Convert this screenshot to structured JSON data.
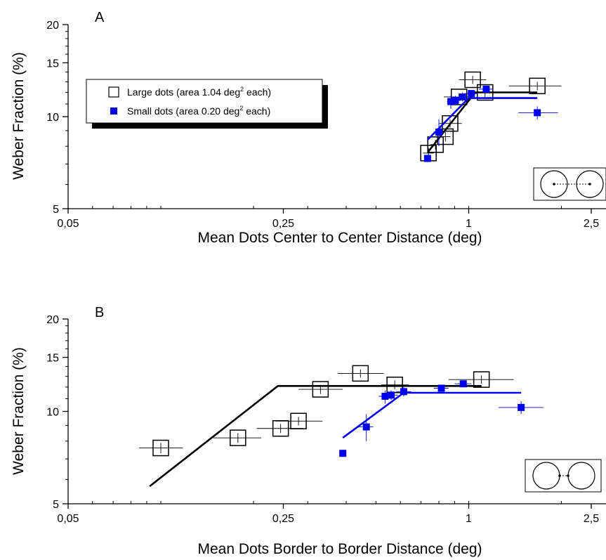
{
  "chart_data": [
    {
      "panel": "A",
      "type": "scatter",
      "xlabel": "Mean Dots Center to Center Distance (deg)",
      "ylabel": "Weber Fraction (%)",
      "x_scale": "log",
      "y_scale": "log",
      "xlim": [
        0.05,
        2.5
      ],
      "ylim": [
        5,
        20
      ],
      "x_ticks": [
        {
          "value": 0.05,
          "label": "0,05"
        },
        {
          "value": 0.25,
          "label": "0,25"
        },
        {
          "value": 1,
          "label": "1"
        },
        {
          "value": 2.5,
          "label": "2,5"
        }
      ],
      "y_ticks": [
        {
          "value": 5,
          "label": "5"
        },
        {
          "value": 10,
          "label": "10"
        },
        {
          "value": 15,
          "label": "15"
        },
        {
          "value": 20,
          "label": "20"
        }
      ],
      "legend": {
        "position": "top-left",
        "entries": [
          {
            "series": "large",
            "text": "Large dots (area 1.04 deg",
            "sup": "2",
            "tail": " each)"
          },
          {
            "series": "small",
            "text": "Small dots (area 0.20 deg",
            "sup": "2",
            "tail": " each)"
          }
        ]
      },
      "series": [
        {
          "name": "Large dots (area 1.04 deg² each)",
          "id": "large",
          "color": "#000000",
          "marker": "open-square",
          "points": [
            {
              "x": 0.74,
              "y": 7.6,
              "xerr": [
                0.71,
                0.77
              ],
              "yerr": [
                7.3,
                7.9
              ]
            },
            {
              "x": 0.78,
              "y": 8.1,
              "xerr": [
                0.75,
                0.81
              ],
              "yerr": [
                7.8,
                8.4
              ]
            },
            {
              "x": 0.84,
              "y": 8.6,
              "xerr": [
                0.8,
                0.87
              ],
              "yerr": [
                8.3,
                8.9
              ]
            },
            {
              "x": 0.87,
              "y": 9.5,
              "xerr": [
                0.8,
                0.95
              ],
              "yerr": [
                9.2,
                9.8
              ]
            },
            {
              "x": 0.93,
              "y": 11.6,
              "xerr": [
                0.83,
                1.02
              ],
              "yerr": [
                11.3,
                11.9
              ]
            },
            {
              "x": 1.03,
              "y": 13.2,
              "xerr": [
                0.93,
                1.14
              ],
              "yerr": [
                12.8,
                13.6
              ]
            },
            {
              "x": 1.13,
              "y": 12.0,
              "xerr": [
                1.03,
                1.25
              ],
              "yerr": [
                11.6,
                12.4
              ]
            },
            {
              "x": 1.67,
              "y": 12.6,
              "xerr": [
                1.35,
                2.0
              ],
              "yerr": [
                12.2,
                13.0
              ]
            }
          ],
          "fit_line": [
            [
              0.74,
              7.7
            ],
            [
              1.05,
              12.0
            ],
            [
              1.67,
              12.0
            ]
          ]
        },
        {
          "name": "Small dots (area 0.20 deg² each)",
          "id": "small",
          "color": "#0000ee",
          "marker": "filled-square",
          "points": [
            {
              "x": 0.735,
              "y": 7.3,
              "xerr": [
                0.72,
                0.75
              ],
              "yerr": [
                7.1,
                7.5
              ]
            },
            {
              "x": 0.8,
              "y": 8.9,
              "xerr": [
                0.77,
                0.83
              ],
              "yerr": [
                8.0,
                9.8
              ]
            },
            {
              "x": 0.875,
              "y": 11.2,
              "xerr": [
                0.85,
                0.9
              ],
              "yerr": [
                10.6,
                11.7
              ]
            },
            {
              "x": 0.905,
              "y": 11.3,
              "xerr": [
                0.87,
                0.94
              ],
              "yerr": [
                10.9,
                11.7
              ]
            },
            {
              "x": 0.955,
              "y": 11.6,
              "xerr": [
                0.91,
                1.0
              ],
              "yerr": [
                11.2,
                12.0
              ]
            },
            {
              "x": 1.02,
              "y": 11.9,
              "xerr": [
                0.97,
                1.07
              ],
              "yerr": [
                11.6,
                12.2
              ]
            },
            {
              "x": 1.14,
              "y": 12.3,
              "xerr": [
                1.08,
                1.2
              ],
              "yerr": [
                12.0,
                12.6
              ]
            },
            {
              "x": 1.67,
              "y": 10.3,
              "xerr": [
                1.45,
                1.95
              ],
              "yerr": [
                9.8,
                10.8
              ]
            }
          ],
          "fit_line": [
            [
              0.735,
              8.4
            ],
            [
              1.0,
              11.5
            ],
            [
              1.67,
              11.5
            ]
          ]
        }
      ],
      "inset_icon": "center-to-center-icon"
    },
    {
      "panel": "B",
      "type": "scatter",
      "xlabel": "Mean Dots Border to Border Distance (deg)",
      "ylabel": "Weber Fraction (%)",
      "x_scale": "log",
      "y_scale": "log",
      "xlim": [
        0.05,
        2.5
      ],
      "ylim": [
        5,
        20
      ],
      "x_ticks": [
        {
          "value": 0.05,
          "label": "0,05"
        },
        {
          "value": 0.25,
          "label": "0,25"
        },
        {
          "value": 1,
          "label": "1"
        },
        {
          "value": 2.5,
          "label": "2,5"
        }
      ],
      "y_ticks": [
        {
          "value": 5,
          "label": "5"
        },
        {
          "value": 10,
          "label": "10"
        },
        {
          "value": 15,
          "label": "15"
        },
        {
          "value": 20,
          "label": "20"
        }
      ],
      "series": [
        {
          "name": "Large dots (area 1.04 deg² each)",
          "id": "large",
          "color": "#000000",
          "marker": "open-square",
          "points": [
            {
              "x": 0.1,
              "y": 7.6,
              "xerr": [
                0.085,
                0.118
              ],
              "yerr": [
                7.3,
                7.9
              ]
            },
            {
              "x": 0.178,
              "y": 8.2,
              "xerr": [
                0.148,
                0.212
              ],
              "yerr": [
                7.9,
                8.5
              ]
            },
            {
              "x": 0.245,
              "y": 8.8,
              "xerr": [
                0.205,
                0.29
              ],
              "yerr": [
                8.5,
                9.1
              ]
            },
            {
              "x": 0.28,
              "y": 9.3,
              "xerr": [
                0.236,
                0.335
              ],
              "yerr": [
                9.0,
                9.6
              ]
            },
            {
              "x": 0.33,
              "y": 11.8,
              "xerr": [
                0.28,
                0.39
              ],
              "yerr": [
                11.4,
                12.2
              ]
            },
            {
              "x": 0.445,
              "y": 13.3,
              "xerr": [
                0.375,
                0.53
              ],
              "yerr": [
                12.9,
                13.7
              ]
            },
            {
              "x": 0.575,
              "y": 12.2,
              "xerr": [
                0.52,
                0.64
              ],
              "yerr": [
                11.8,
                12.6
              ]
            },
            {
              "x": 1.1,
              "y": 12.7,
              "xerr": [
                0.86,
                1.4
              ],
              "yerr": [
                12.3,
                13.1
              ]
            }
          ],
          "fit_line": [
            [
              0.092,
              5.7
            ],
            [
              0.24,
              12.1
            ],
            [
              1.1,
              12.1
            ]
          ]
        },
        {
          "name": "Small dots (area 0.20 deg² each)",
          "id": "small",
          "color": "#0000ee",
          "marker": "filled-square",
          "points": [
            {
              "x": 0.39,
              "y": 7.3,
              "xerr": [
                0.38,
                0.4
              ],
              "yerr": [
                7.1,
                7.5
              ]
            },
            {
              "x": 0.465,
              "y": 8.9,
              "xerr": [
                0.44,
                0.49
              ],
              "yerr": [
                8.0,
                9.8
              ]
            },
            {
              "x": 0.535,
              "y": 11.2,
              "xerr": [
                0.51,
                0.56
              ],
              "yerr": [
                10.6,
                11.7
              ]
            },
            {
              "x": 0.56,
              "y": 11.3,
              "xerr": [
                0.53,
                0.59
              ],
              "yerr": [
                10.9,
                11.7
              ]
            },
            {
              "x": 0.615,
              "y": 11.6,
              "xerr": [
                0.58,
                0.65
              ],
              "yerr": [
                11.2,
                12.0
              ]
            },
            {
              "x": 0.815,
              "y": 11.9,
              "xerr": [
                0.77,
                0.86
              ],
              "yerr": [
                11.6,
                12.2
              ]
            },
            {
              "x": 0.96,
              "y": 12.3,
              "xerr": [
                0.9,
                1.02
              ],
              "yerr": [
                12.0,
                12.6
              ]
            },
            {
              "x": 1.48,
              "y": 10.3,
              "xerr": [
                1.25,
                1.75
              ],
              "yerr": [
                9.8,
                10.8
              ]
            }
          ],
          "fit_line": [
            [
              0.39,
              8.2
            ],
            [
              0.615,
              11.5
            ],
            [
              1.48,
              11.5
            ]
          ]
        }
      ],
      "inset_icon": "border-to-border-icon"
    }
  ]
}
